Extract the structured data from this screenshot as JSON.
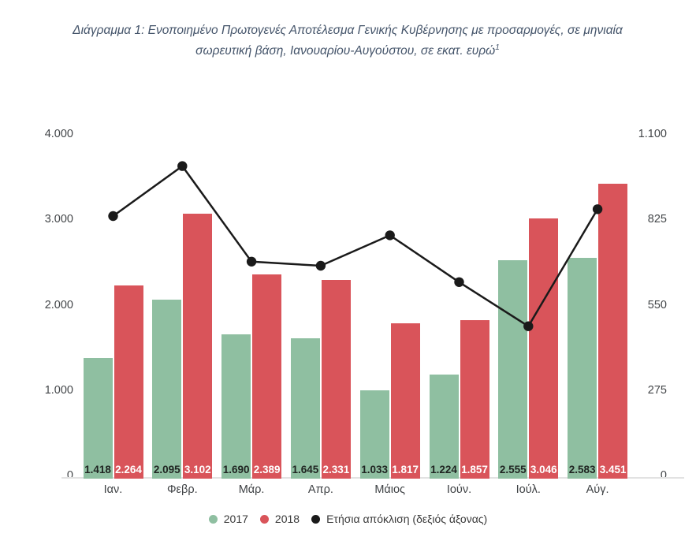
{
  "title": {
    "line1": "Διάγραμμα 1: Ενοποιημένο Πρωτογενές Αποτέλεσμα Γενικής Κυβέρνησης με προσαρμογές, σε μηνιαία",
    "line2": "σωρευτική βάση, Ιανουαρίου-Αυγούστου, σε εκατ. ευρώ",
    "superscript": "1",
    "color": "#44546A"
  },
  "chart_data": {
    "type": "bar",
    "title": "Διάγραμμα 1: Ενοποιημένο Πρωτογενές Αποτέλεσμα Γενικής Κυβέρνησης με προσαρμογές, σε μηνιαία σωρευτική βάση, Ιανουαρίου-Αυγούστου, σε εκατ. ευρώ",
    "categories": [
      "Ιαν.",
      "Φεβρ.",
      "Μάρ.",
      "Απρ.",
      "Μάιος",
      "Ιούν.",
      "Ιούλ.",
      "Αύγ."
    ],
    "series": [
      {
        "name": "2017",
        "render": "bar",
        "axis": "left",
        "color": "#8FBFA1",
        "values": [
          1418,
          2095,
          1690,
          1645,
          1033,
          1224,
          2555,
          2583
        ],
        "value_labels": [
          "1.418",
          "2.095",
          "1.690",
          "1.645",
          "1.033",
          "1.224",
          "2.555",
          "2.583"
        ],
        "label_color": "#1F2421"
      },
      {
        "name": "2018",
        "render": "bar",
        "axis": "left",
        "color": "#D9545A",
        "values": [
          2264,
          3102,
          2389,
          2331,
          1817,
          1857,
          3046,
          3451
        ],
        "value_labels": [
          "2.264",
          "3.102",
          "2.389",
          "2.331",
          "1.817",
          "1.857",
          "3.046",
          "3.451"
        ],
        "label_color": "#FFFFFF"
      },
      {
        "name": "Ετήσια απόκλιση (δεξιός άξονας)",
        "render": "line",
        "axis": "right",
        "color": "#1A1A1A",
        "values": [
          846,
          1007,
          699,
          686,
          784,
          633,
          491,
          868
        ]
      }
    ],
    "left_axis": {
      "min": 0,
      "max": 4000,
      "ticks": [
        {
          "label": "4.000",
          "value": 4000
        },
        {
          "label": "3.000",
          "value": 3000
        },
        {
          "label": "2.000",
          "value": 2000
        },
        {
          "label": "1.000",
          "value": 1000
        },
        {
          "label": "0",
          "value": 0
        }
      ]
    },
    "right_axis": {
      "min": 0,
      "max": 1100,
      "ticks": [
        {
          "label": "1.100",
          "value": 1100
        },
        {
          "label": "825",
          "value": 825
        },
        {
          "label": "550",
          "value": 550
        },
        {
          "label": "275",
          "value": 275
        },
        {
          "label": "0",
          "value": 0
        }
      ]
    },
    "grid": false,
    "legend_position": "bottom"
  }
}
